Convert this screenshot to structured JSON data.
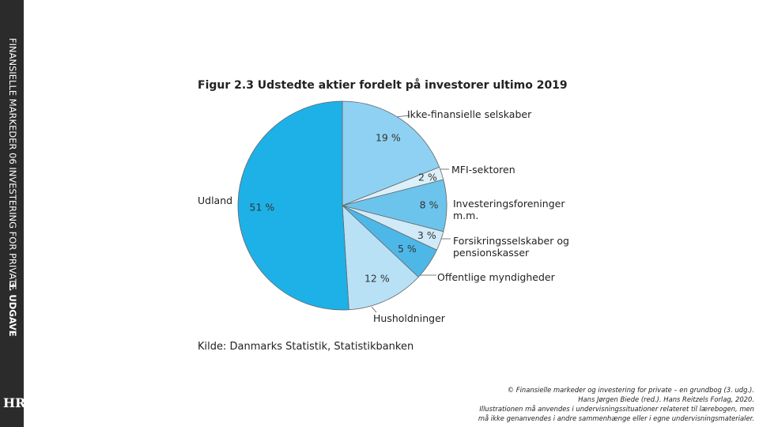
{
  "sidebar": {
    "title": "FINANSIELLE MARKEDER 06 INVESTERING FOR PRIVATE",
    "edition": "3. UDGAVE",
    "logo": "HR"
  },
  "chart_data": {
    "type": "pie",
    "title": "Figur 2.3  Udstedte aktier fordelt på investorer ultimo 2019",
    "categories": [
      "Ikke-finansielle selskaber",
      "MFI-sektoren",
      "Investeringsforeninger m.m.",
      "Forsikringsselskaber og pensionskasser",
      "Offentlige myndigheder",
      "Husholdninger",
      "Udland"
    ],
    "values": [
      19,
      2,
      8,
      3,
      5,
      12,
      51
    ],
    "value_labels": [
      "19 %",
      "2 %",
      "8 %",
      "3 %",
      "5 %",
      "12 %",
      "51 %"
    ],
    "colors": [
      "#8fd1f2",
      "#dcf0fa",
      "#6cc4ec",
      "#d0eaf8",
      "#4db8e8",
      "#b8e1f6",
      "#1eb1e7"
    ],
    "source": "Kilde: Danmarks Statistik, Statistikbanken"
  },
  "footer": [
    "© Finansielle markeder og investering for private – en grundbog (3. udg.).",
    "Hans Jørgen Biede (red.). Hans Reitzels Forlag, 2020.",
    "Illustrationen må anvendes i undervisningssituationer relateret til lærebogen, men",
    "må ikke genanvendes i andre sammenhænge eller i egne undervisningsmaterialer."
  ]
}
